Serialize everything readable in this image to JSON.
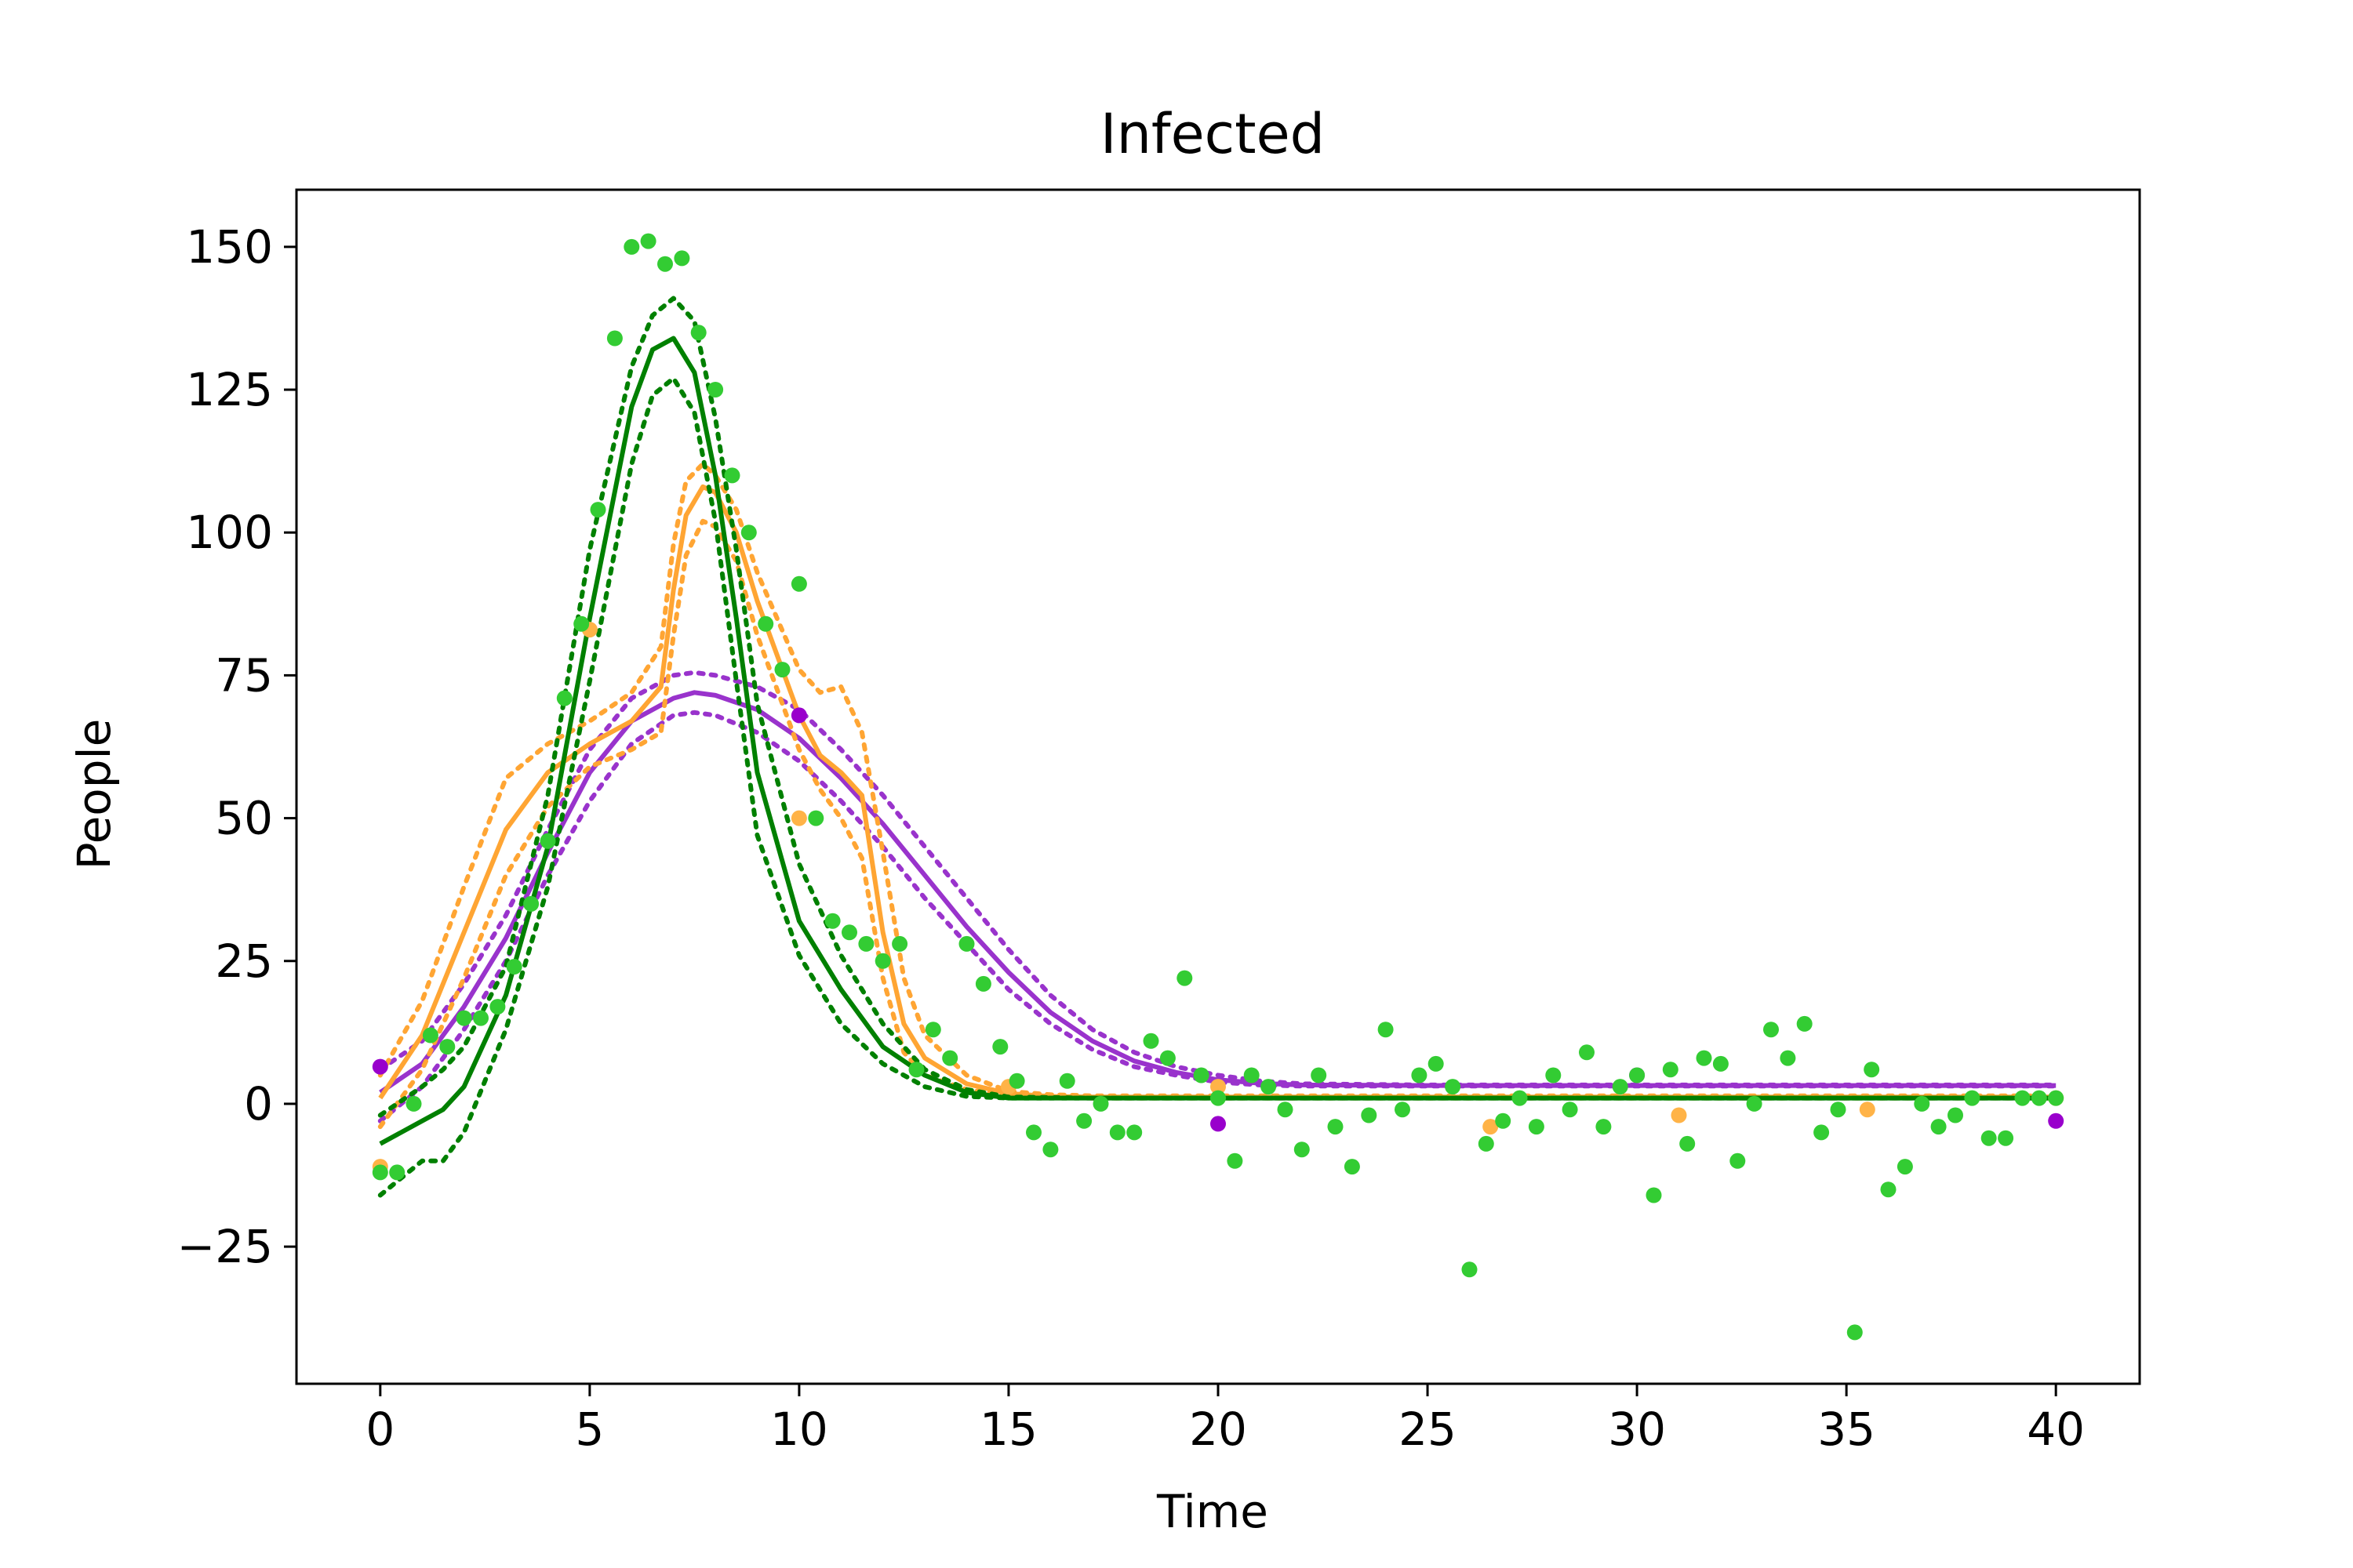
{
  "chart_data": {
    "type": "line",
    "title": "Infected",
    "xlabel": "Time",
    "ylabel": "People",
    "xlim": [
      -2,
      42
    ],
    "ylim": [
      -49,
      160
    ],
    "xticks": [
      0,
      5,
      10,
      15,
      20,
      25,
      30,
      35,
      40
    ],
    "yticks": [
      -25,
      0,
      25,
      50,
      75,
      100,
      125,
      150
    ],
    "ytick_labels": [
      "−25",
      "0",
      "25",
      "50",
      "75",
      "100",
      "125",
      "150"
    ],
    "grid": false,
    "legend": "none",
    "series": [
      {
        "color": "#9933cc",
        "style": "solid",
        "x": [
          0,
          1,
          2,
          3,
          4,
          5,
          6,
          7,
          7.5,
          8,
          9,
          10,
          11,
          12,
          13,
          14,
          15,
          16,
          17,
          18,
          19,
          20,
          21,
          22,
          25,
          30,
          35,
          40
        ],
        "y": [
          2,
          7,
          17,
          29,
          44,
          58,
          67,
          71,
          72,
          71.5,
          69,
          64,
          57,
          49,
          40,
          31,
          23,
          16,
          11,
          7.5,
          5.5,
          4.2,
          3.6,
          3.3,
          3.2,
          3.2,
          3.2,
          3.2
        ]
      },
      {
        "color": "#9933cc",
        "style": "dotted",
        "x": [
          0,
          1,
          2,
          3,
          4,
          5,
          6,
          7,
          7.5,
          8,
          9,
          10,
          11,
          12,
          13,
          14,
          15,
          16,
          17,
          18,
          19,
          20,
          21,
          22,
          25,
          30,
          35,
          40
        ],
        "y": [
          6,
          11,
          21,
          33,
          48,
          62,
          71,
          75,
          75.5,
          75,
          73,
          69,
          62,
          54,
          45,
          36,
          27,
          19,
          13,
          9,
          6.5,
          5,
          4,
          3.5,
          3.3,
          3.3,
          3.3,
          3.3
        ]
      },
      {
        "color": "#9933cc",
        "style": "dotted",
        "x": [
          0,
          1,
          2,
          3,
          4,
          5,
          6,
          7,
          7.5,
          8,
          9,
          10,
          11,
          12,
          13,
          14,
          15,
          16,
          17,
          18,
          19,
          20,
          21,
          22,
          25,
          30,
          35,
          40
        ],
        "y": [
          -3,
          3,
          13,
          25,
          40,
          53,
          63,
          68,
          68.5,
          68,
          65,
          60,
          53,
          45,
          36,
          28,
          20,
          14,
          9.5,
          6.5,
          5,
          3.8,
          3.3,
          3.1,
          3.1,
          3.1,
          3.1,
          3.1
        ]
      },
      {
        "color": "#ffa533",
        "style": "solid",
        "x": [
          0,
          1,
          2,
          3,
          4,
          5,
          6,
          6.7,
          7,
          7.3,
          7.7,
          8,
          8.5,
          9,
          10,
          10.5,
          11,
          11.5,
          12,
          12.5,
          13,
          14,
          15,
          16,
          17,
          18,
          20,
          25,
          30,
          35,
          40
        ],
        "y": [
          1,
          12,
          30,
          48,
          58,
          63,
          67,
          73,
          90,
          103,
          108,
          107,
          100,
          88,
          68,
          61,
          58,
          54,
          30,
          14,
          8,
          3.5,
          1.8,
          1.3,
          1.2,
          1.2,
          1.2,
          1.2,
          1.2,
          1.2,
          1.2
        ]
      },
      {
        "color": "#ffa533",
        "style": "dotted",
        "x": [
          0,
          1,
          2,
          3,
          4,
          5,
          6,
          6.7,
          7,
          7.3,
          7.7,
          8,
          8.5,
          9,
          10,
          10.5,
          11,
          11.5,
          12,
          12.5,
          13,
          14,
          15,
          16,
          17,
          18,
          20,
          25,
          30,
          35,
          40
        ],
        "y": [
          5,
          18,
          38,
          57,
          63,
          67,
          72,
          80,
          98,
          109,
          112,
          110,
          104,
          93,
          76,
          72,
          73,
          65,
          44,
          22,
          12,
          5,
          2.2,
          1.6,
          1.4,
          1.4,
          1.4,
          1.4,
          1.4,
          1.4,
          1.4
        ]
      },
      {
        "color": "#ffa533",
        "style": "dotted",
        "x": [
          0,
          1,
          2,
          3,
          4,
          5,
          6,
          6.7,
          7,
          7.3,
          7.7,
          8,
          8.5,
          9,
          10,
          10.5,
          11,
          11.5,
          12,
          12.5,
          13,
          14,
          15,
          16,
          17,
          18,
          20,
          25,
          30,
          35,
          40
        ],
        "y": [
          -4,
          6,
          22,
          40,
          52,
          59,
          62,
          65,
          82,
          96,
          102,
          101,
          95,
          82,
          62,
          55,
          50,
          43,
          22,
          9,
          5,
          2.5,
          1.4,
          1.1,
          1,
          1,
          1,
          1,
          1,
          1,
          1
        ]
      },
      {
        "color": "#008000",
        "style": "solid",
        "x": [
          0,
          1,
          1.5,
          2,
          3,
          4,
          5,
          6,
          6.5,
          7,
          7.5,
          8,
          8.5,
          9,
          10,
          11,
          12,
          13,
          14,
          15,
          16,
          17,
          18,
          20,
          25,
          30,
          35,
          40
        ],
        "y": [
          -7,
          -3,
          -1,
          3,
          19,
          45,
          85,
          122,
          132,
          134,
          128,
          110,
          85,
          58,
          32,
          20,
          10,
          5,
          2,
          1,
          1,
          1,
          1,
          1,
          1,
          1,
          1,
          1
        ]
      },
      {
        "color": "#008000",
        "style": "dotted",
        "x": [
          0,
          1,
          1.5,
          2,
          3,
          4,
          5,
          6,
          6.5,
          7,
          7.5,
          8,
          8.5,
          9,
          10,
          11,
          12,
          13,
          14,
          15,
          16,
          17,
          18,
          20,
          25,
          30,
          35,
          40
        ],
        "y": [
          -2,
          3,
          6,
          10,
          24,
          54,
          97,
          129,
          138,
          141,
          137,
          120,
          97,
          70,
          42,
          26,
          14,
          6,
          2.5,
          1.2,
          1.1,
          1,
          1,
          1,
          1,
          1,
          1,
          1
        ]
      },
      {
        "color": "#008000",
        "style": "dotted",
        "x": [
          0,
          1,
          1.5,
          2,
          3,
          4,
          5,
          6,
          6.5,
          7,
          7.5,
          8,
          8.5,
          9,
          10,
          11,
          12,
          13,
          14,
          15,
          16,
          17,
          18,
          20,
          25,
          30,
          35,
          40
        ],
        "y": [
          -16,
          -10,
          -10,
          -5,
          13,
          38,
          74,
          112,
          124,
          127,
          121,
          102,
          74,
          47,
          26,
          14,
          7,
          3,
          1.3,
          1,
          1,
          1,
          1,
          1,
          1,
          1,
          1,
          1
        ]
      }
    ],
    "scatter": [
      {
        "color": "#9900cc",
        "points": [
          [
            0,
            6.5
          ],
          [
            10,
            68
          ],
          [
            20,
            -3.5
          ],
          [
            30,
            5
          ],
          [
            40,
            -3
          ]
        ]
      },
      {
        "color": "#ffb347",
        "points": [
          [
            0,
            -11
          ],
          [
            5,
            83
          ],
          [
            10,
            50
          ],
          [
            15,
            3
          ],
          [
            20,
            3
          ],
          [
            26.5,
            -4
          ],
          [
            31,
            -2
          ],
          [
            35.5,
            -1
          ],
          [
            40,
            1
          ]
        ]
      },
      {
        "color": "#33cc33",
        "points": [
          [
            0,
            -12
          ],
          [
            0.4,
            -12
          ],
          [
            0.8,
            0
          ],
          [
            1.2,
            12
          ],
          [
            1.6,
            10
          ],
          [
            2,
            15
          ],
          [
            2.4,
            15
          ],
          [
            2.8,
            17
          ],
          [
            3.2,
            24
          ],
          [
            3.6,
            35
          ],
          [
            4,
            46
          ],
          [
            4.4,
            71
          ],
          [
            4.8,
            84
          ],
          [
            5.2,
            104
          ],
          [
            5.6,
            134
          ],
          [
            6,
            150
          ],
          [
            6.4,
            151
          ],
          [
            6.8,
            147
          ],
          [
            7.2,
            148
          ],
          [
            7.6,
            135
          ],
          [
            8,
            125
          ],
          [
            8.4,
            110
          ],
          [
            8.8,
            100
          ],
          [
            9.2,
            84
          ],
          [
            9.6,
            76
          ],
          [
            10,
            91
          ],
          [
            10.4,
            50
          ],
          [
            10.8,
            32
          ],
          [
            11.2,
            30
          ],
          [
            11.6,
            28
          ],
          [
            12,
            25
          ],
          [
            12.4,
            28
          ],
          [
            12.8,
            6
          ],
          [
            13.2,
            13
          ],
          [
            13.6,
            8
          ],
          [
            14,
            28
          ],
          [
            14.4,
            21
          ],
          [
            14.8,
            10
          ],
          [
            15.2,
            4
          ],
          [
            15.6,
            -5
          ],
          [
            16,
            -8
          ],
          [
            16.4,
            4
          ],
          [
            16.8,
            -3
          ],
          [
            17.2,
            0
          ],
          [
            17.6,
            -5
          ],
          [
            18,
            -5
          ],
          [
            18.4,
            11
          ],
          [
            18.8,
            8
          ],
          [
            19.2,
            22
          ],
          [
            19.6,
            5
          ],
          [
            20,
            1
          ],
          [
            20.4,
            -10
          ],
          [
            20.8,
            5
          ],
          [
            21.2,
            3
          ],
          [
            21.6,
            -1
          ],
          [
            22,
            -8
          ],
          [
            22.4,
            5
          ],
          [
            22.8,
            -4
          ],
          [
            23.2,
            -11
          ],
          [
            23.6,
            -2
          ],
          [
            24,
            13
          ],
          [
            24.4,
            -1
          ],
          [
            24.8,
            5
          ],
          [
            25.2,
            7
          ],
          [
            25.6,
            3
          ],
          [
            26,
            -29
          ],
          [
            26.4,
            -7
          ],
          [
            26.8,
            -3
          ],
          [
            27.2,
            1
          ],
          [
            27.6,
            -4
          ],
          [
            28,
            5
          ],
          [
            28.4,
            -1
          ],
          [
            28.8,
            9
          ],
          [
            29.2,
            -4
          ],
          [
            29.6,
            3
          ],
          [
            30,
            5
          ],
          [
            30.4,
            -16
          ],
          [
            30.8,
            6
          ],
          [
            31.2,
            -7
          ],
          [
            31.6,
            8
          ],
          [
            32,
            7
          ],
          [
            32.4,
            -10
          ],
          [
            32.8,
            0
          ],
          [
            33.2,
            13
          ],
          [
            33.6,
            8
          ],
          [
            34,
            14
          ],
          [
            34.4,
            -5
          ],
          [
            34.8,
            -1
          ],
          [
            35.2,
            -40
          ],
          [
            35.6,
            6
          ],
          [
            36,
            -15
          ],
          [
            36.4,
            -11
          ],
          [
            36.8,
            0
          ],
          [
            37.2,
            -4
          ],
          [
            37.6,
            -2
          ],
          [
            38,
            1
          ],
          [
            38.4,
            -6
          ],
          [
            38.8,
            -6
          ],
          [
            39.2,
            1
          ],
          [
            39.6,
            1
          ],
          [
            40,
            1
          ]
        ]
      }
    ]
  }
}
